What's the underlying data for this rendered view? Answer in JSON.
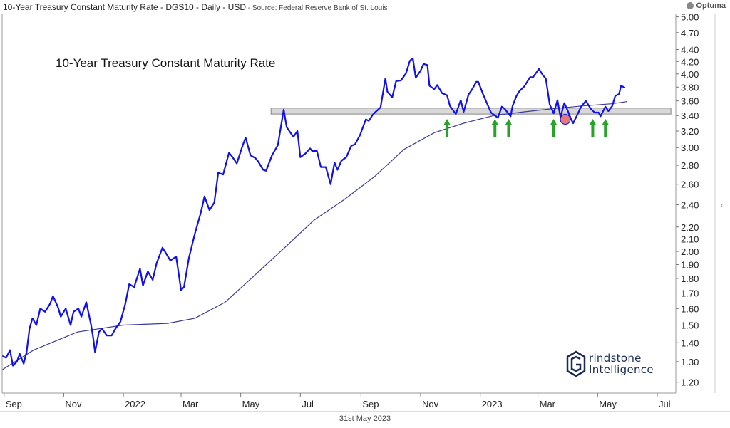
{
  "header": {
    "title": "10-Year Treasury Constant Maturity Rate - DGS10 - Daily - USD",
    "source": " - Source: Federal Reserve Bank of St. Louis"
  },
  "brand": {
    "name": "Optuma",
    "icon": "optuma-logo-icon"
  },
  "watermark": {
    "line1": "rindstone",
    "line2": "Intelligence"
  },
  "footer": {
    "date": "31st May 2023"
  },
  "colors": {
    "price": "#1010e8",
    "ma": "#3a3a99",
    "band_fill": "#d8d8d8",
    "arrow": "#27a327",
    "marker": "#e06060"
  },
  "chart_data": {
    "type": "line",
    "title": "10-Year Treasury Constant Maturity Rate",
    "ylabel": "",
    "xlabel": "",
    "y_scale": "log",
    "ylim": [
      1.15,
      5.05
    ],
    "xlim": [
      "2021-08-30",
      "2023-07-20"
    ],
    "y_ticks": [
      1.2,
      1.3,
      1.4,
      1.5,
      1.6,
      1.7,
      1.8,
      1.9,
      2.0,
      2.1,
      2.2,
      2.4,
      2.6,
      2.8,
      3.0,
      3.2,
      3.4,
      3.6,
      3.8,
      4.0,
      4.2,
      4.4,
      4.7,
      5.0
    ],
    "y_tick_labels": [
      "1.20",
      "1.30",
      "1.40",
      "1.50",
      "1.60",
      "1.70",
      "1.80",
      "1.90",
      "2.00",
      "2.10",
      "2.20",
      "2.40",
      "2.60",
      "2.80",
      "3.00",
      "3.20",
      "3.40",
      "3.60",
      "3.80",
      "4.00",
      "4.20",
      "4.40",
      "4.70",
      "5.00"
    ],
    "x_ticks": [
      {
        "label": "Sep",
        "date": "2021-09-01"
      },
      {
        "label": "Nov",
        "date": "2021-11-01"
      },
      {
        "label": "2022",
        "date": "2022-01-01"
      },
      {
        "label": "Mar",
        "date": "2022-03-01"
      },
      {
        "label": "May",
        "date": "2022-05-01"
      },
      {
        "label": "Jul",
        "date": "2022-07-01"
      },
      {
        "label": "Sep",
        "date": "2022-09-01"
      },
      {
        "label": "Nov",
        "date": "2022-11-01"
      },
      {
        "label": "2023",
        "date": "2023-01-01"
      },
      {
        "label": "Mar",
        "date": "2023-03-01"
      },
      {
        "label": "May",
        "date": "2023-05-01"
      },
      {
        "label": "Jul",
        "date": "2023-07-01"
      }
    ],
    "grid": false,
    "resistance_band": {
      "start": "2022-06-01",
      "end": "2023-07-15",
      "low": 3.42,
      "high": 3.5
    },
    "series": [
      {
        "type": "price",
        "points": [
          [
            "2021-08-30",
            1.33
          ],
          [
            "2021-09-03",
            1.32
          ],
          [
            "2021-09-07",
            1.36
          ],
          [
            "2021-09-10",
            1.28
          ],
          [
            "2021-09-14",
            1.3
          ],
          [
            "2021-09-17",
            1.34
          ],
          [
            "2021-09-21",
            1.29
          ],
          [
            "2021-09-24",
            1.35
          ],
          [
            "2021-09-27",
            1.48
          ],
          [
            "2021-09-30",
            1.54
          ],
          [
            "2021-10-04",
            1.5
          ],
          [
            "2021-10-08",
            1.6
          ],
          [
            "2021-10-13",
            1.58
          ],
          [
            "2021-10-18",
            1.63
          ],
          [
            "2021-10-21",
            1.68
          ],
          [
            "2021-10-26",
            1.61
          ],
          [
            "2021-10-29",
            1.55
          ],
          [
            "2021-11-03",
            1.6
          ],
          [
            "2021-11-08",
            1.5
          ],
          [
            "2021-11-11",
            1.58
          ],
          [
            "2021-11-16",
            1.6
          ],
          [
            "2021-11-19",
            1.55
          ],
          [
            "2021-11-24",
            1.64
          ],
          [
            "2021-11-29",
            1.5
          ],
          [
            "2021-12-01",
            1.43
          ],
          [
            "2021-12-03",
            1.35
          ],
          [
            "2021-12-07",
            1.46
          ],
          [
            "2021-12-10",
            1.48
          ],
          [
            "2021-12-15",
            1.44
          ],
          [
            "2021-12-20",
            1.44
          ],
          [
            "2021-12-24",
            1.48
          ],
          [
            "2021-12-29",
            1.52
          ],
          [
            "2022-01-03",
            1.63
          ],
          [
            "2022-01-07",
            1.76
          ],
          [
            "2022-01-12",
            1.74
          ],
          [
            "2022-01-18",
            1.87
          ],
          [
            "2022-01-21",
            1.75
          ],
          [
            "2022-01-26",
            1.85
          ],
          [
            "2022-01-31",
            1.79
          ],
          [
            "2022-02-04",
            1.91
          ],
          [
            "2022-02-10",
            2.03
          ],
          [
            "2022-02-14",
            1.98
          ],
          [
            "2022-02-18",
            1.93
          ],
          [
            "2022-02-24",
            1.96
          ],
          [
            "2022-03-01",
            1.72
          ],
          [
            "2022-03-04",
            1.74
          ],
          [
            "2022-03-09",
            1.95
          ],
          [
            "2022-03-15",
            2.14
          ],
          [
            "2022-03-21",
            2.32
          ],
          [
            "2022-03-25",
            2.48
          ],
          [
            "2022-03-30",
            2.35
          ],
          [
            "2022-04-04",
            2.42
          ],
          [
            "2022-04-08",
            2.72
          ],
          [
            "2022-04-13",
            2.7
          ],
          [
            "2022-04-19",
            2.94
          ],
          [
            "2022-04-22",
            2.9
          ],
          [
            "2022-04-27",
            2.82
          ],
          [
            "2022-05-02",
            2.99
          ],
          [
            "2022-05-06",
            3.12
          ],
          [
            "2022-05-11",
            2.91
          ],
          [
            "2022-05-16",
            2.88
          ],
          [
            "2022-05-19",
            2.84
          ],
          [
            "2022-05-24",
            2.75
          ],
          [
            "2022-05-27",
            2.74
          ],
          [
            "2022-06-02",
            2.91
          ],
          [
            "2022-06-08",
            3.03
          ],
          [
            "2022-06-14",
            3.48
          ],
          [
            "2022-06-17",
            3.25
          ],
          [
            "2022-06-22",
            3.16
          ],
          [
            "2022-06-24",
            3.13
          ],
          [
            "2022-06-28",
            3.2
          ],
          [
            "2022-07-01",
            2.89
          ],
          [
            "2022-07-06",
            2.93
          ],
          [
            "2022-07-11",
            2.99
          ],
          [
            "2022-07-13",
            2.96
          ],
          [
            "2022-07-18",
            2.96
          ],
          [
            "2022-07-22",
            2.78
          ],
          [
            "2022-07-27",
            2.78
          ],
          [
            "2022-08-01",
            2.6
          ],
          [
            "2022-08-05",
            2.83
          ],
          [
            "2022-08-08",
            2.75
          ],
          [
            "2022-08-12",
            2.85
          ],
          [
            "2022-08-17",
            2.89
          ],
          [
            "2022-08-22",
            3.02
          ],
          [
            "2022-08-26",
            3.04
          ],
          [
            "2022-08-31",
            3.15
          ],
          [
            "2022-09-06",
            3.35
          ],
          [
            "2022-09-09",
            3.33
          ],
          [
            "2022-09-13",
            3.41
          ],
          [
            "2022-09-16",
            3.45
          ],
          [
            "2022-09-21",
            3.51
          ],
          [
            "2022-09-26",
            3.93
          ],
          [
            "2022-09-28",
            3.73
          ],
          [
            "2022-10-03",
            3.65
          ],
          [
            "2022-10-07",
            3.89
          ],
          [
            "2022-10-12",
            3.9
          ],
          [
            "2022-10-17",
            4.01
          ],
          [
            "2022-10-21",
            4.21
          ],
          [
            "2022-10-24",
            4.25
          ],
          [
            "2022-10-27",
            3.94
          ],
          [
            "2022-11-01",
            4.05
          ],
          [
            "2022-11-04",
            4.16
          ],
          [
            "2022-11-08",
            4.14
          ],
          [
            "2022-11-10",
            3.82
          ],
          [
            "2022-11-15",
            3.77
          ],
          [
            "2022-11-18",
            3.83
          ],
          [
            "2022-11-23",
            3.71
          ],
          [
            "2022-11-28",
            3.68
          ],
          [
            "2022-12-01",
            3.53
          ],
          [
            "2022-12-07",
            3.42
          ],
          [
            "2022-12-12",
            3.61
          ],
          [
            "2022-12-15",
            3.45
          ],
          [
            "2022-12-20",
            3.69
          ],
          [
            "2022-12-23",
            3.75
          ],
          [
            "2022-12-28",
            3.88
          ],
          [
            "2022-12-30",
            3.88
          ],
          [
            "2023-01-04",
            3.69
          ],
          [
            "2023-01-09",
            3.53
          ],
          [
            "2023-01-12",
            3.44
          ],
          [
            "2023-01-19",
            3.37
          ],
          [
            "2023-01-23",
            3.52
          ],
          [
            "2023-01-26",
            3.49
          ],
          [
            "2023-02-01",
            3.39
          ],
          [
            "2023-02-03",
            3.53
          ],
          [
            "2023-02-07",
            3.67
          ],
          [
            "2023-02-10",
            3.74
          ],
          [
            "2023-02-15",
            3.81
          ],
          [
            "2023-02-21",
            3.95
          ],
          [
            "2023-02-24",
            3.95
          ],
          [
            "2023-03-02",
            4.08
          ],
          [
            "2023-03-06",
            3.98
          ],
          [
            "2023-03-09",
            3.93
          ],
          [
            "2023-03-13",
            3.55
          ],
          [
            "2023-03-17",
            3.43
          ],
          [
            "2023-03-21",
            3.61
          ],
          [
            "2023-03-24",
            3.38
          ],
          [
            "2023-03-28",
            3.57
          ],
          [
            "2023-03-31",
            3.48
          ],
          [
            "2023-04-04",
            3.35
          ],
          [
            "2023-04-06",
            3.3
          ],
          [
            "2023-04-11",
            3.43
          ],
          [
            "2023-04-14",
            3.52
          ],
          [
            "2023-04-19",
            3.6
          ],
          [
            "2023-04-24",
            3.49
          ],
          [
            "2023-04-28",
            3.44
          ],
          [
            "2023-05-02",
            3.44
          ],
          [
            "2023-05-04",
            3.39
          ],
          [
            "2023-05-09",
            3.52
          ],
          [
            "2023-05-12",
            3.46
          ],
          [
            "2023-05-16",
            3.53
          ],
          [
            "2023-05-19",
            3.67
          ],
          [
            "2023-05-23",
            3.7
          ],
          [
            "2023-05-25",
            3.82
          ],
          [
            "2023-05-29",
            3.79
          ]
        ]
      },
      {
        "type": "moving_average",
        "points": [
          [
            "2021-08-30",
            1.26
          ],
          [
            "2021-10-01",
            1.36
          ],
          [
            "2021-11-15",
            1.46
          ],
          [
            "2022-01-01",
            1.5
          ],
          [
            "2022-02-15",
            1.51
          ],
          [
            "2022-03-15",
            1.54
          ],
          [
            "2022-04-15",
            1.64
          ],
          [
            "2022-05-15",
            1.82
          ],
          [
            "2022-06-15",
            2.03
          ],
          [
            "2022-07-15",
            2.26
          ],
          [
            "2022-08-15",
            2.45
          ],
          [
            "2022-09-15",
            2.68
          ],
          [
            "2022-10-15",
            2.98
          ],
          [
            "2022-11-15",
            3.18
          ],
          [
            "2022-12-15",
            3.3
          ],
          [
            "2023-01-15",
            3.4
          ],
          [
            "2023-02-15",
            3.45
          ],
          [
            "2023-03-15",
            3.49
          ],
          [
            "2023-04-15",
            3.53
          ],
          [
            "2023-05-15",
            3.56
          ],
          [
            "2023-05-31",
            3.59
          ]
        ]
      }
    ],
    "annotations": [
      {
        "type": "up-arrow",
        "date": "2022-11-28"
      },
      {
        "type": "up-arrow",
        "date": "2023-01-16"
      },
      {
        "type": "up-arrow",
        "date": "2023-01-30"
      },
      {
        "type": "up-arrow",
        "date": "2023-03-17"
      },
      {
        "type": "up-arrow",
        "date": "2023-04-26"
      },
      {
        "type": "up-arrow",
        "date": "2023-05-09"
      },
      {
        "type": "circle-marker",
        "date": "2023-03-29",
        "y": 3.35
      }
    ]
  }
}
